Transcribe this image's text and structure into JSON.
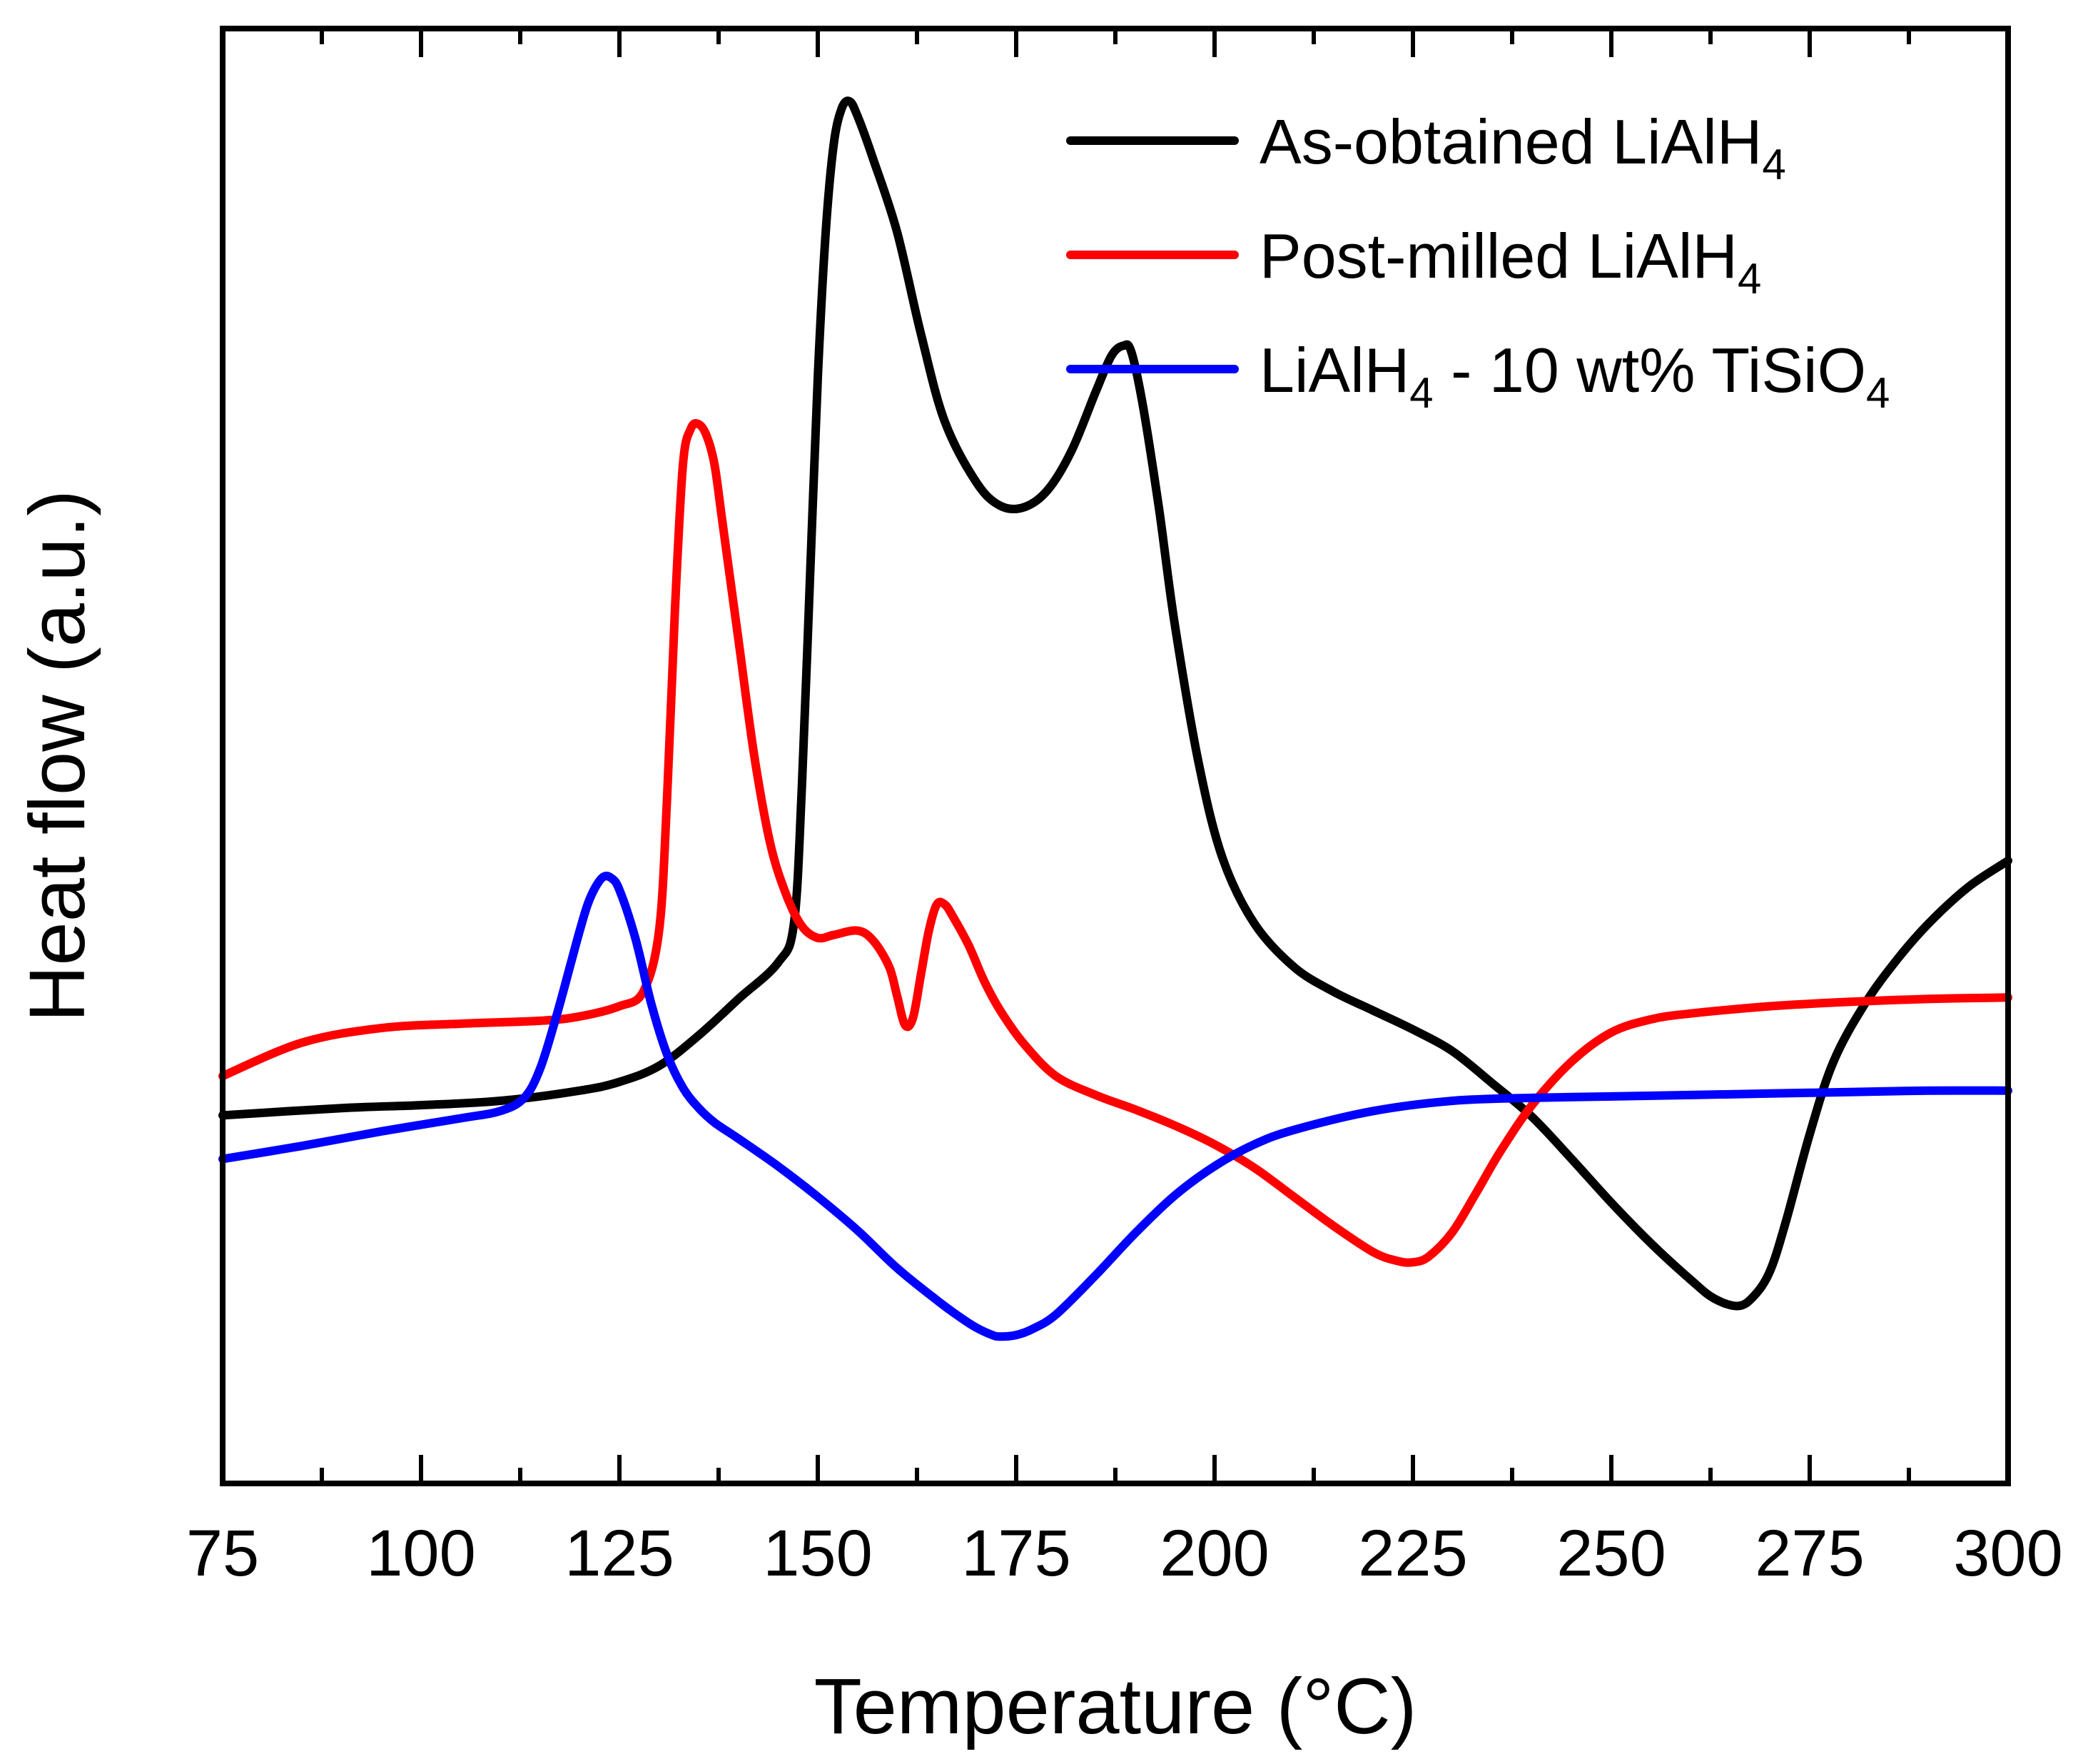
{
  "chart_data": {
    "type": "line",
    "title": "",
    "xlabel": "Temperature (°C)",
    "ylabel": "Heat flow (a.u.)",
    "xlim": [
      75,
      300
    ],
    "ylim": [
      0,
      100
    ],
    "x_ticks": [
      75,
      100,
      125,
      150,
      175,
      200,
      225,
      250,
      275,
      300
    ],
    "y_ticks": [],
    "legend_position": "top-right",
    "series": [
      {
        "name": "As-obtained LiAlH4",
        "label_main": "As-obtained LiAlH",
        "label_sub": "4",
        "label_tail": "",
        "label_sub2": "",
        "color": "#000000",
        "x": [
          75,
          90,
          100,
          110,
          120,
          125,
          130,
          135,
          140,
          145,
          147,
          148,
          149,
          150,
          151,
          152,
          153,
          154,
          155,
          157,
          160,
          163,
          166,
          170,
          173,
          176,
          179,
          182,
          185,
          187,
          188.5,
          189.5,
          191,
          193,
          195,
          198,
          201,
          205,
          210,
          215,
          220,
          225,
          230,
          235,
          240,
          245,
          250,
          255,
          260,
          263,
          266,
          268,
          270,
          272,
          275,
          278,
          282,
          286,
          290,
          295,
          300
        ],
        "y": [
          25.3,
          25.8,
          26,
          26.3,
          27,
          27.6,
          28.7,
          30.8,
          33.3,
          35.8,
          38.5,
          48,
          62,
          76,
          86,
          92,
          94.5,
          95,
          94,
          91,
          86,
          79,
          73,
          68.8,
          67.2,
          67.1,
          68.3,
          71,
          75,
          77.5,
          78.2,
          77.8,
          74,
          67,
          59,
          49.5,
          43,
          38.5,
          35.5,
          33.8,
          32.5,
          31.2,
          29.7,
          27.5,
          25.2,
          22.3,
          19.3,
          16.5,
          14,
          12.7,
          12.2,
          12.9,
          14.6,
          18,
          24,
          29,
          33,
          36,
          38.5,
          41,
          42.8
        ]
      },
      {
        "name": "Post-milled LiAlH4",
        "label_main": "Post-milled LiAlH",
        "label_sub": "4",
        "label_tail": "",
        "label_sub2": "",
        "color": "#ff0000",
        "x": [
          75,
          85,
          95,
          105,
          115,
          120,
          125,
          128,
          130,
          131,
          132,
          133,
          134,
          135,
          136,
          137,
          138,
          140,
          142,
          144,
          146,
          148,
          150,
          152,
          155,
          157,
          159,
          160,
          161,
          162,
          163,
          164,
          165,
          166,
          167,
          169,
          171,
          173,
          176,
          180,
          185,
          190,
          195,
          200,
          205,
          210,
          215,
          220,
          223,
          225,
          227,
          230,
          233,
          236,
          240,
          245,
          250,
          255,
          260,
          270,
          280,
          290,
          300
        ],
        "y": [
          28,
          30.3,
          31.3,
          31.6,
          31.8,
          32.1,
          32.8,
          33.8,
          38,
          47,
          60,
          70,
          72.5,
          72.8,
          72,
          70,
          66,
          58,
          50,
          44,
          40.5,
          38.3,
          37.5,
          37.7,
          38,
          37.3,
          35.5,
          33.5,
          31.5,
          32,
          35,
          38,
          39.8,
          39.8,
          39,
          37,
          34.5,
          32.5,
          30.2,
          28,
          26.7,
          25.7,
          24.6,
          23.3,
          21.7,
          19.7,
          17.7,
          15.9,
          15.3,
          15.2,
          15.6,
          17.3,
          20,
          22.8,
          26,
          29,
          31,
          31.9,
          32.3,
          32.8,
          33.1,
          33.3,
          33.4
        ]
      },
      {
        "name": "LiAlH4 - 10 wt% TiSiO4",
        "label_main": "LiAlH",
        "label_sub": "4",
        "label_tail": " - 10 wt% TiSiO",
        "label_sub2": "4",
        "color": "#0000ff",
        "x": [
          75,
          85,
          95,
          105,
          110,
          113,
          115,
          117,
          119,
          120,
          121,
          122,
          123,
          124,
          125,
          127,
          129,
          131,
          133,
          135,
          137,
          140,
          145,
          150,
          155,
          160,
          165,
          168,
          170,
          172,
          173,
          175,
          177,
          180,
          185,
          190,
          195,
          200,
          205,
          210,
          220,
          230,
          240,
          250,
          260,
          270,
          280,
          290,
          300
        ],
        "y": [
          22.3,
          23.2,
          24.2,
          25.1,
          25.6,
          26.5,
          28.5,
          32,
          36,
          38,
          39.8,
          41,
          41.7,
          41.6,
          40.8,
          37.5,
          33,
          29.5,
          27.2,
          25.8,
          24.8,
          23.7,
          21.8,
          19.7,
          17.4,
          14.8,
          12.6,
          11.4,
          10.7,
          10.2,
          10.1,
          10.2,
          10.6,
          11.6,
          14.3,
          17.2,
          19.8,
          21.8,
          23.3,
          24.3,
          25.6,
          26.3,
          26.5,
          26.6,
          26.7,
          26.8,
          26.9,
          27,
          27
        ]
      }
    ]
  }
}
